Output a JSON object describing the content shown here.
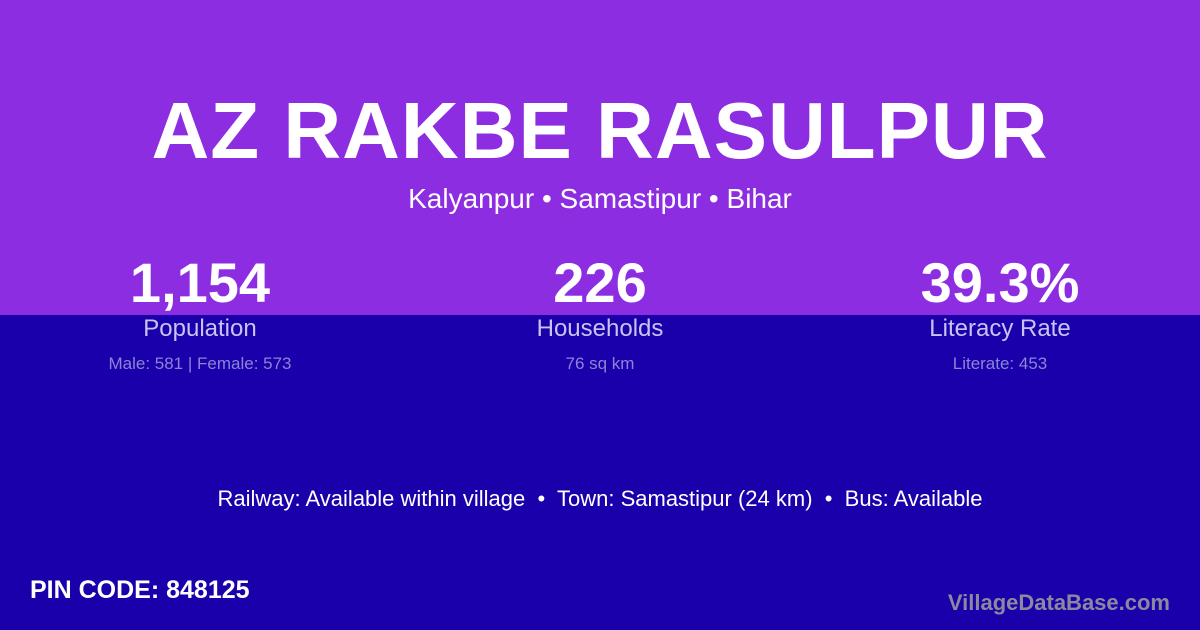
{
  "colors": {
    "top_band": "#8d2de2",
    "bottom_band": "#1a00ab"
  },
  "title": "AZ RAKBE RASULPUR",
  "subtitle": "Kalyanpur • Samastipur • Bihar",
  "stats": [
    {
      "value": "1,154",
      "label": "Population",
      "detail": "Male: 581 | Female: 573"
    },
    {
      "value": "226",
      "label": "Households",
      "detail": "76 sq km"
    },
    {
      "value": "39.3%",
      "label": "Literacy Rate",
      "detail": "Literate: 453"
    }
  ],
  "info_line": "Railway: Available within village  •  Town: Samastipur (24 km)  •  Bus: Available",
  "pin_code": "PIN CODE: 848125",
  "brand": "VillageDataBase.com"
}
